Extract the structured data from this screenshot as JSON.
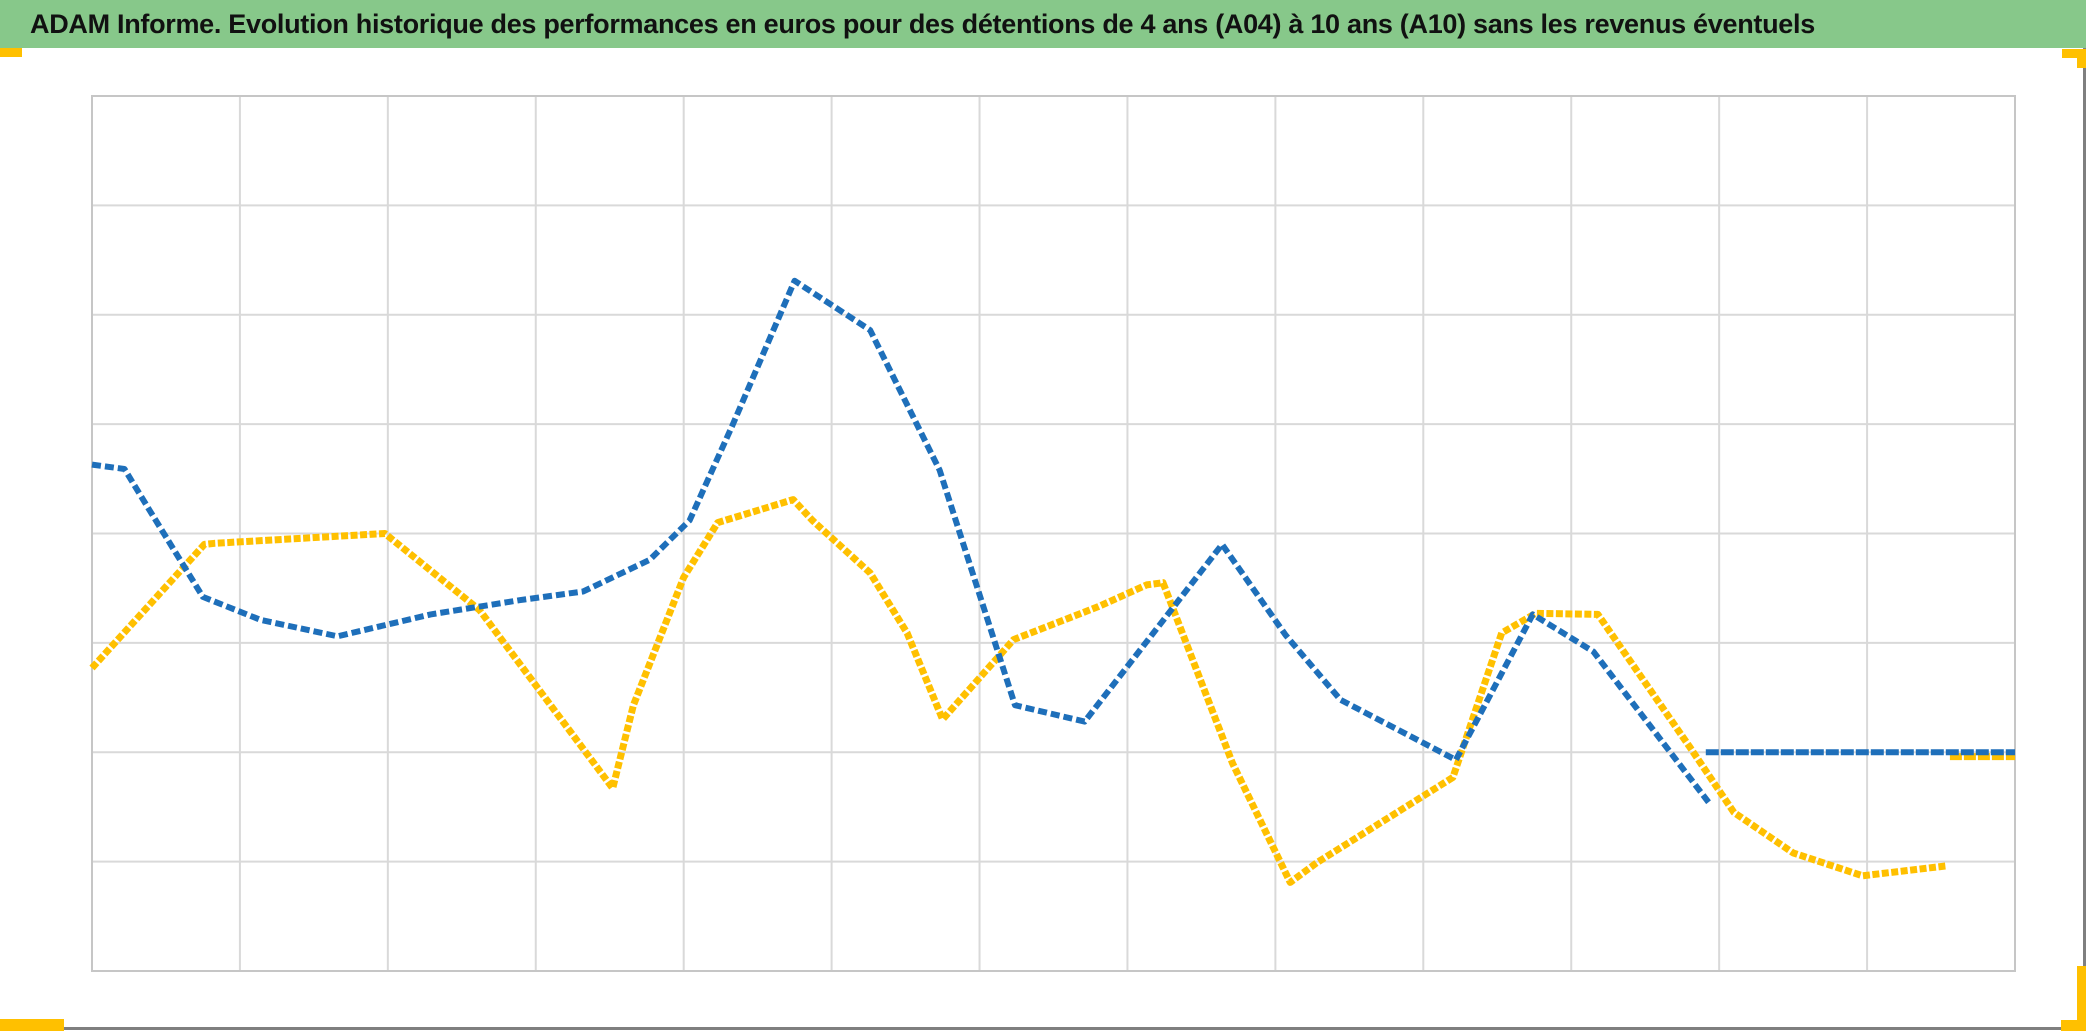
{
  "header": {
    "title": "ADAM Informe. Evolution historique des performances en euros pour des détentions de 4 ans (A04) à 10 ans (A10) sans les revenus éventuels"
  },
  "colors": {
    "header_green": "#87C88A",
    "title_text": "#111111",
    "series_blue": "#1E6FBA",
    "series_gold": "#FFC000",
    "gridline": "#D9D9D9",
    "plot_border": "#C6C6C6",
    "frame_gray": "#7F7F7F",
    "corner_accent": "#FFC000",
    "background": "#FFFFFF"
  },
  "chart_data": {
    "type": "line",
    "title": "ADAM Informe. Evolution historique des performances en euros pour des détentions de 4 ans (A04) à 10 ans (A10) sans les revenus éventuels",
    "xlabel": "",
    "ylabel": "",
    "legend_visible": false,
    "axis_tick_labels_visible": false,
    "grid": "on",
    "x_axis": {
      "gridline_intervals": 13,
      "tick_labels": []
    },
    "y_axis": {
      "gridline_intervals": 8,
      "tick_labels": []
    },
    "units_note": "axes are unlabeled in the image; point coordinates are estimated in gridline units (x: 0-13 left to right, y: 0-8 bottom to top)",
    "series": [
      {
        "name": "series-gold",
        "color": "#FFC000",
        "segments": [
          [
            [
              0,
              2.77
            ],
            [
              0.76,
              3.9
            ],
            [
              0.83,
              3.91
            ],
            [
              1.98,
              4.0
            ],
            [
              2.62,
              3.3
            ],
            [
              3.52,
              1.67
            ],
            [
              3.66,
              2.43
            ],
            [
              4.0,
              3.6
            ],
            [
              4.23,
              4.1
            ],
            [
              4.74,
              4.31
            ],
            [
              4.87,
              4.12
            ],
            [
              5.26,
              3.64
            ],
            [
              5.51,
              3.09
            ],
            [
              5.75,
              2.3
            ],
            [
              6.23,
              3.03
            ],
            [
              6.8,
              3.33
            ],
            [
              7.13,
              3.53
            ],
            [
              7.24,
              3.55
            ],
            [
              7.71,
              1.9
            ],
            [
              8.1,
              0.81
            ],
            [
              8.28,
              0.99
            ],
            [
              9.2,
              1.77
            ],
            [
              9.53,
              3.09
            ],
            [
              9.76,
              3.27
            ],
            [
              10.18,
              3.26
            ],
            [
              10.8,
              2.05
            ],
            [
              11.1,
              1.45
            ],
            [
              11.5,
              1.08
            ],
            [
              11.97,
              0.87
            ],
            [
              12.53,
              0.96
            ]
          ],
          [
            [
              12.56,
              1.96
            ],
            [
              13,
              1.96
            ]
          ]
        ]
      },
      {
        "name": "series-blue",
        "color": "#1E6FBA",
        "segments": [
          [
            [
              0,
              4.63
            ],
            [
              0.22,
              4.59
            ],
            [
              0.39,
              4.21
            ],
            [
              0.75,
              3.42
            ],
            [
              1.14,
              3.21
            ],
            [
              1.66,
              3.06
            ],
            [
              2.29,
              3.26
            ],
            [
              2.89,
              3.39
            ],
            [
              3.32,
              3.47
            ],
            [
              3.77,
              3.76
            ],
            [
              4.04,
              4.12
            ],
            [
              4.33,
              4.99
            ],
            [
              4.75,
              6.31
            ],
            [
              5.26,
              5.86
            ],
            [
              5.73,
              4.58
            ],
            [
              6.24,
              2.43
            ],
            [
              6.71,
              2.28
            ],
            [
              7.64,
              3.9
            ],
            [
              8.07,
              3.07
            ],
            [
              8.44,
              2.48
            ],
            [
              9.22,
              1.93
            ],
            [
              9.74,
              3.26
            ],
            [
              10.15,
              2.92
            ],
            [
              10.93,
              1.54
            ]
          ],
          [
            [
              10.91,
              2.0
            ],
            [
              13,
              2.0
            ]
          ]
        ]
      }
    ]
  }
}
